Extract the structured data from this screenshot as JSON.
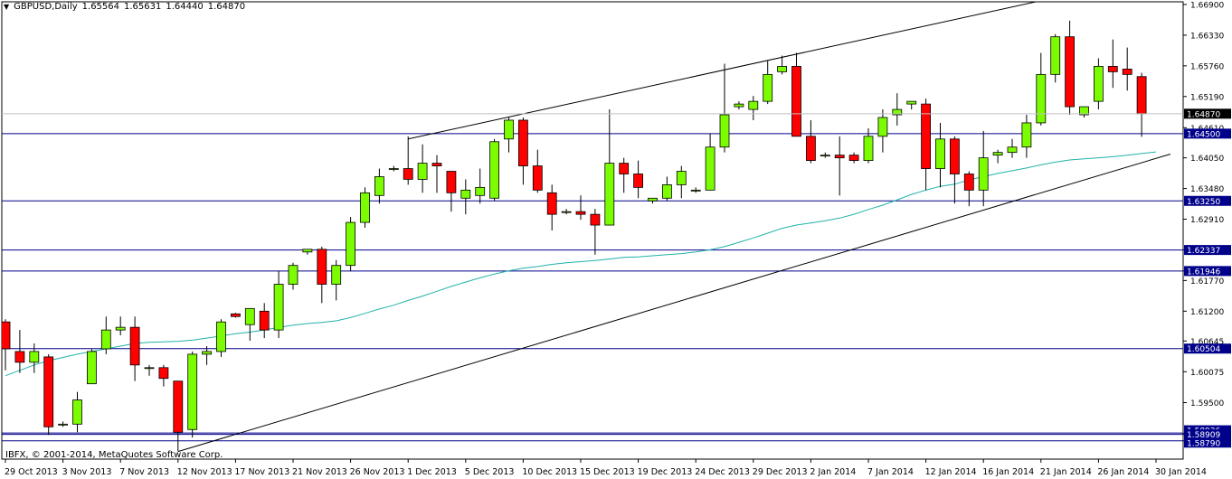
{
  "header": {
    "symbol": "GBPUSD,Daily",
    "open": "1.65564",
    "high": "1.65631",
    "low": "1.64440",
    "close": "1.64870",
    "menu_icon": "triangle-down-icon"
  },
  "copyright": "IBFX, © 2001-2014, MetaQuotes Software Corp.",
  "colors": {
    "bull": "#7CFC00",
    "bear": "#FF0000",
    "ma": "#20B2AA",
    "level": "#00008B",
    "price_box": "#000000"
  },
  "chart_data": {
    "type": "candlestick",
    "title": "GBPUSD,Daily",
    "ylim": [
      1.5845,
      1.6695
    ],
    "y_ticks": [
      "1.66900",
      "1.66330",
      "1.65760",
      "1.65190",
      "1.64610",
      "1.64050",
      "1.63480",
      "1.62910",
      "1.62337",
      "1.61946",
      "1.61770",
      "1.61200",
      "1.60645",
      "1.60075",
      "1.59500",
      "1.58930",
      "1.58909",
      "1.58790"
    ],
    "x_ticks": [
      {
        "label": "29 Oct 2013",
        "index": 0
      },
      {
        "label": "3 Nov 2013",
        "index": 4
      },
      {
        "label": "7 Nov 2013",
        "index": 8
      },
      {
        "label": "12 Nov 2013",
        "index": 12
      },
      {
        "label": "17 Nov 2013",
        "index": 16
      },
      {
        "label": "21 Nov 2013",
        "index": 20
      },
      {
        "label": "26 Nov 2013",
        "index": 24
      },
      {
        "label": "1 Dec 2013",
        "index": 28
      },
      {
        "label": "5 Dec 2013",
        "index": 32
      },
      {
        "label": "10 Dec 2013",
        "index": 36
      },
      {
        "label": "15 Dec 2013",
        "index": 40
      },
      {
        "label": "19 Dec 2013",
        "index": 44
      },
      {
        "label": "24 Dec 2013",
        "index": 48
      },
      {
        "label": "29 Dec 2013",
        "index": 52
      },
      {
        "label": "2 Jan 2014",
        "index": 56
      },
      {
        "label": "7 Jan 2014",
        "index": 60
      },
      {
        "label": "12 Jan 2014",
        "index": 64
      },
      {
        "label": "16 Jan 2014",
        "index": 68
      },
      {
        "label": "21 Jan 2014",
        "index": 72
      },
      {
        "label": "26 Jan 2014",
        "index": 76
      },
      {
        "label": "30 Jan 2014",
        "index": 80
      }
    ],
    "candles": [
      {
        "o": 1.61,
        "h": 1.6105,
        "l": 1.601,
        "c": 1.605
      },
      {
        "o": 1.6045,
        "h": 1.6085,
        "l": 1.6005,
        "c": 1.6025
      },
      {
        "o": 1.6025,
        "h": 1.606,
        "l": 1.6005,
        "c": 1.6045
      },
      {
        "o": 1.6035,
        "h": 1.604,
        "l": 1.589,
        "c": 1.5905
      },
      {
        "o": 1.591,
        "h": 1.5915,
        "l": 1.5905,
        "c": 1.591
      },
      {
        "o": 1.591,
        "h": 1.597,
        "l": 1.5895,
        "c": 1.5955
      },
      {
        "o": 1.5985,
        "h": 1.605,
        "l": 1.5985,
        "c": 1.6045
      },
      {
        "o": 1.605,
        "h": 1.611,
        "l": 1.604,
        "c": 1.6085
      },
      {
        "o": 1.6085,
        "h": 1.611,
        "l": 1.6075,
        "c": 1.609
      },
      {
        "o": 1.609,
        "h": 1.611,
        "l": 1.599,
        "c": 1.602
      },
      {
        "o": 1.6015,
        "h": 1.602,
        "l": 1.6,
        "c": 1.6015
      },
      {
        "o": 1.6015,
        "h": 1.602,
        "l": 1.598,
        "c": 1.5995
      },
      {
        "o": 1.599,
        "h": 1.599,
        "l": 1.586,
        "c": 1.5895
      },
      {
        "o": 1.59,
        "h": 1.6045,
        "l": 1.5885,
        "c": 1.604
      },
      {
        "o": 1.604,
        "h": 1.6055,
        "l": 1.602,
        "c": 1.6045
      },
      {
        "o": 1.6045,
        "h": 1.6105,
        "l": 1.6035,
        "c": 1.61
      },
      {
        "o": 1.6115,
        "h": 1.6117,
        "l": 1.6108,
        "c": 1.611
      },
      {
        "o": 1.6095,
        "h": 1.6125,
        "l": 1.6065,
        "c": 1.6125
      },
      {
        "o": 1.612,
        "h": 1.6135,
        "l": 1.607,
        "c": 1.6085
      },
      {
        "o": 1.6085,
        "h": 1.6195,
        "l": 1.607,
        "c": 1.617
      },
      {
        "o": 1.617,
        "h": 1.621,
        "l": 1.616,
        "c": 1.6205
      },
      {
        "o": 1.623,
        "h": 1.6235,
        "l": 1.6225,
        "c": 1.6235
      },
      {
        "o": 1.6235,
        "h": 1.624,
        "l": 1.6135,
        "c": 1.617
      },
      {
        "o": 1.617,
        "h": 1.6215,
        "l": 1.614,
        "c": 1.6205
      },
      {
        "o": 1.6205,
        "h": 1.6295,
        "l": 1.6195,
        "c": 1.6285
      },
      {
        "o": 1.6285,
        "h": 1.635,
        "l": 1.6275,
        "c": 1.634
      },
      {
        "o": 1.6335,
        "h": 1.6385,
        "l": 1.632,
        "c": 1.637
      },
      {
        "o": 1.6385,
        "h": 1.639,
        "l": 1.638,
        "c": 1.6385
      },
      {
        "o": 1.6385,
        "h": 1.6445,
        "l": 1.6355,
        "c": 1.6365
      },
      {
        "o": 1.6365,
        "h": 1.643,
        "l": 1.634,
        "c": 1.6395
      },
      {
        "o": 1.6395,
        "h": 1.641,
        "l": 1.634,
        "c": 1.639
      },
      {
        "o": 1.638,
        "h": 1.638,
        "l": 1.6305,
        "c": 1.634
      },
      {
        "o": 1.633,
        "h": 1.6365,
        "l": 1.63,
        "c": 1.6345
      },
      {
        "o": 1.6335,
        "h": 1.6385,
        "l": 1.632,
        "c": 1.635
      },
      {
        "o": 1.633,
        "h": 1.644,
        "l": 1.6325,
        "c": 1.6435
      },
      {
        "o": 1.644,
        "h": 1.648,
        "l": 1.6415,
        "c": 1.6475
      },
      {
        "o": 1.6475,
        "h": 1.648,
        "l": 1.6355,
        "c": 1.639
      },
      {
        "o": 1.639,
        "h": 1.642,
        "l": 1.634,
        "c": 1.6345
      },
      {
        "o": 1.634,
        "h": 1.6355,
        "l": 1.627,
        "c": 1.63
      },
      {
        "o": 1.6305,
        "h": 1.631,
        "l": 1.63,
        "c": 1.6305
      },
      {
        "o": 1.6305,
        "h": 1.6335,
        "l": 1.629,
        "c": 1.63
      },
      {
        "o": 1.63,
        "h": 1.631,
        "l": 1.6225,
        "c": 1.628
      },
      {
        "o": 1.628,
        "h": 1.6495,
        "l": 1.628,
        "c": 1.6395
      },
      {
        "o": 1.6395,
        "h": 1.6405,
        "l": 1.634,
        "c": 1.6375
      },
      {
        "o": 1.6375,
        "h": 1.64,
        "l": 1.633,
        "c": 1.635
      },
      {
        "o": 1.6325,
        "h": 1.633,
        "l": 1.632,
        "c": 1.633
      },
      {
        "o": 1.633,
        "h": 1.637,
        "l": 1.6325,
        "c": 1.6355
      },
      {
        "o": 1.6355,
        "h": 1.639,
        "l": 1.633,
        "c": 1.638
      },
      {
        "o": 1.6345,
        "h": 1.635,
        "l": 1.634,
        "c": 1.6345
      },
      {
        "o": 1.6345,
        "h": 1.645,
        "l": 1.6345,
        "c": 1.6425
      },
      {
        "o": 1.6425,
        "h": 1.658,
        "l": 1.6415,
        "c": 1.6485
      },
      {
        "o": 1.65,
        "h": 1.651,
        "l": 1.6495,
        "c": 1.6505
      },
      {
        "o": 1.6495,
        "h": 1.652,
        "l": 1.6475,
        "c": 1.651
      },
      {
        "o": 1.651,
        "h": 1.6585,
        "l": 1.6505,
        "c": 1.656
      },
      {
        "o": 1.6565,
        "h": 1.6595,
        "l": 1.656,
        "c": 1.6575
      },
      {
        "o": 1.6575,
        "h": 1.66,
        "l": 1.6445,
        "c": 1.6445
      },
      {
        "o": 1.6445,
        "h": 1.6475,
        "l": 1.6395,
        "c": 1.64
      },
      {
        "o": 1.641,
        "h": 1.6415,
        "l": 1.6405,
        "c": 1.641
      },
      {
        "o": 1.641,
        "h": 1.6445,
        "l": 1.6335,
        "c": 1.6405
      },
      {
        "o": 1.641,
        "h": 1.6415,
        "l": 1.6395,
        "c": 1.64
      },
      {
        "o": 1.64,
        "h": 1.646,
        "l": 1.6395,
        "c": 1.6445
      },
      {
        "o": 1.6445,
        "h": 1.6495,
        "l": 1.6415,
        "c": 1.648
      },
      {
        "o": 1.6485,
        "h": 1.6525,
        "l": 1.6465,
        "c": 1.6495
      },
      {
        "o": 1.6505,
        "h": 1.651,
        "l": 1.6495,
        "c": 1.651
      },
      {
        "o": 1.6505,
        "h": 1.6515,
        "l": 1.6345,
        "c": 1.6385
      },
      {
        "o": 1.6385,
        "h": 1.647,
        "l": 1.635,
        "c": 1.644
      },
      {
        "o": 1.644,
        "h": 1.6445,
        "l": 1.632,
        "c": 1.6375
      },
      {
        "o": 1.6375,
        "h": 1.638,
        "l": 1.6315,
        "c": 1.6345
      },
      {
        "o": 1.6345,
        "h": 1.6455,
        "l": 1.6315,
        "c": 1.6405
      },
      {
        "o": 1.641,
        "h": 1.642,
        "l": 1.6395,
        "c": 1.6415
      },
      {
        "o": 1.6415,
        "h": 1.644,
        "l": 1.6405,
        "c": 1.6425
      },
      {
        "o": 1.6425,
        "h": 1.6485,
        "l": 1.6405,
        "c": 1.647
      },
      {
        "o": 1.647,
        "h": 1.66,
        "l": 1.6465,
        "c": 1.656
      },
      {
        "o": 1.656,
        "h": 1.6635,
        "l": 1.6545,
        "c": 1.663
      },
      {
        "o": 1.663,
        "h": 1.666,
        "l": 1.6485,
        "c": 1.65
      },
      {
        "o": 1.6485,
        "h": 1.65,
        "l": 1.648,
        "c": 1.65
      },
      {
        "o": 1.651,
        "h": 1.659,
        "l": 1.6495,
        "c": 1.6575
      },
      {
        "o": 1.6575,
        "h": 1.6625,
        "l": 1.6535,
        "c": 1.6565
      },
      {
        "o": 1.657,
        "h": 1.661,
        "l": 1.653,
        "c": 1.656
      },
      {
        "o": 1.6556,
        "h": 1.6563,
        "l": 1.6444,
        "c": 1.6487
      }
    ],
    "moving_average": [
      1.6,
      1.601,
      1.602,
      1.6028,
      1.6034,
      1.604,
      1.6045,
      1.605,
      1.6055,
      1.606,
      1.6062,
      1.6063,
      1.6064,
      1.6066,
      1.607,
      1.6074,
      1.6078,
      1.6081,
      1.6085,
      1.609,
      1.6094,
      1.6097,
      1.6099,
      1.6102,
      1.6108,
      1.6116,
      1.6124,
      1.6131,
      1.614,
      1.6148,
      1.6157,
      1.6166,
      1.6174,
      1.6182,
      1.6189,
      1.6195,
      1.62,
      1.6203,
      1.6207,
      1.621,
      1.6212,
      1.6214,
      1.6217,
      1.622,
      1.6221,
      1.6223,
      1.6225,
      1.6227,
      1.623,
      1.6234,
      1.624,
      1.6248,
      1.6256,
      1.6265,
      1.6274,
      1.628,
      1.6284,
      1.6288,
      1.6293,
      1.63,
      1.6309,
      1.6317,
      1.6327,
      1.6337,
      1.6345,
      1.6352,
      1.6356,
      1.6364,
      1.637,
      1.6376,
      1.6381,
      1.6386,
      1.6392,
      1.6397,
      1.6401,
      1.6403,
      1.6405,
      1.6407,
      1.641,
      1.6413,
      1.6416
    ],
    "horizontal_levels": [
      {
        "value": 1.645,
        "label": "1.64500"
      },
      {
        "value": 1.6325,
        "label": "1.63250"
      },
      {
        "value": 1.62337,
        "label": "1.62337"
      },
      {
        "value": 1.61946,
        "label": "1.61946"
      },
      {
        "value": 1.60504,
        "label": "1.60504"
      },
      {
        "value": 1.58936,
        "label": "1.58936"
      },
      {
        "value": 1.58909,
        "label": "1.58909"
      },
      {
        "value": 1.5879,
        "label": "1.58790"
      }
    ],
    "current_price": {
      "value": 1.6487,
      "label": "1.64870"
    },
    "trendlines": [
      {
        "name": "upper-channel-line",
        "from": {
          "index": 28,
          "price": 1.644
        },
        "to": {
          "index": 72.5,
          "price": 1.67
        }
      },
      {
        "name": "lower-channel-line",
        "from": {
          "index": 12,
          "price": 1.5859
        },
        "to": {
          "index": 81,
          "price": 1.6412
        }
      }
    ]
  }
}
